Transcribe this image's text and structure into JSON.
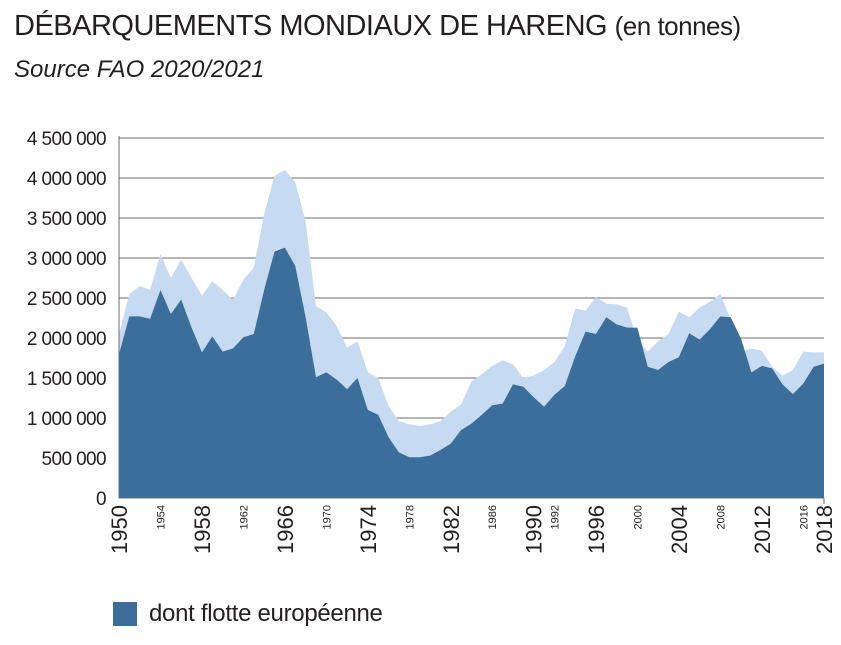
{
  "title": "DÉBARQUEMENTS MONDIAUX DE HARENG",
  "title_unit": "(en tonnes)",
  "subtitle": "Source FAO 2020/2021",
  "colors": {
    "total_area": "#c6dbf1",
    "europe_area": "#3b6e9b",
    "grid": "#6d6e71",
    "text": "#231f20"
  },
  "chart_data": {
    "type": "area",
    "title": "DÉBARQUEMENTS MONDIAUX DE HARENG (en tonnes)",
    "subtitle": "Source FAO 2020/2021",
    "xlabel": "",
    "ylabel": "",
    "ylim": [
      0,
      4500000
    ],
    "xlim": [
      1950,
      2018
    ],
    "grid": true,
    "legend_position": "bottom-left",
    "y_ticks": [
      {
        "value": 0,
        "label": "0"
      },
      {
        "value": 500000,
        "label": "500 000"
      },
      {
        "value": 1000000,
        "label": "1 000 000"
      },
      {
        "value": 1500000,
        "label": "1 500 000"
      },
      {
        "value": 2000000,
        "label": "2 000 000"
      },
      {
        "value": 2500000,
        "label": "2 500 000"
      },
      {
        "value": 3000000,
        "label": "3 000 000"
      },
      {
        "value": 3500000,
        "label": "3 500 000"
      },
      {
        "value": 4000000,
        "label": "4 000 000"
      },
      {
        "value": 4500000,
        "label": "4 500 000"
      }
    ],
    "x_ticks_major": [
      "1950",
      "1958",
      "1966",
      "1974",
      "1982",
      "1990",
      "1996",
      "2004",
      "2012",
      "2018"
    ],
    "x_ticks_minor": [
      "1954",
      "1962",
      "1970",
      "1978",
      "1986",
      "1992",
      "2000",
      "2008",
      "2016"
    ],
    "x": [
      1950,
      1951,
      1952,
      1953,
      1954,
      1955,
      1956,
      1957,
      1958,
      1959,
      1960,
      1961,
      1962,
      1963,
      1964,
      1965,
      1966,
      1967,
      1968,
      1969,
      1970,
      1971,
      1972,
      1973,
      1974,
      1975,
      1976,
      1977,
      1978,
      1979,
      1980,
      1981,
      1982,
      1983,
      1984,
      1985,
      1986,
      1987,
      1988,
      1989,
      1990,
      1991,
      1992,
      1993,
      1994,
      1995,
      1996,
      1997,
      1998,
      1999,
      2000,
      2001,
      2002,
      2003,
      2004,
      2005,
      2006,
      2007,
      2008,
      2009,
      2010,
      2011,
      2012,
      2013,
      2014,
      2015,
      2016,
      2017,
      2018
    ],
    "series": [
      {
        "name": "",
        "values": [
          2050000,
          2550000,
          2650000,
          2600000,
          3050000,
          2750000,
          2980000,
          2750000,
          2530000,
          2710000,
          2600000,
          2480000,
          2730000,
          2880000,
          3550000,
          4030000,
          4100000,
          3950000,
          3450000,
          2400000,
          2320000,
          2150000,
          1880000,
          1960000,
          1570000,
          1500000,
          1150000,
          960000,
          920000,
          900000,
          920000,
          960000,
          1080000,
          1170000,
          1460000,
          1550000,
          1650000,
          1720000,
          1670000,
          1500000,
          1530000,
          1600000,
          1700000,
          1900000,
          2370000,
          2340000,
          2510000,
          2430000,
          2420000,
          2380000,
          1980000,
          1830000,
          1960000,
          2050000,
          2330000,
          2260000,
          2380000,
          2450000,
          2550000,
          2230000,
          1820000,
          1870000,
          1840000,
          1640000,
          1530000,
          1600000,
          1830000,
          1820000,
          1820000
        ]
      },
      {
        "name": "dont flotte européenne",
        "values": [
          1800000,
          2270000,
          2270000,
          2240000,
          2600000,
          2300000,
          2480000,
          2130000,
          1820000,
          2020000,
          1830000,
          1870000,
          2010000,
          2050000,
          2600000,
          3080000,
          3130000,
          2900000,
          2260000,
          1510000,
          1570000,
          1480000,
          1360000,
          1500000,
          1100000,
          1040000,
          760000,
          570000,
          510000,
          510000,
          530000,
          600000,
          680000,
          850000,
          930000,
          1040000,
          1160000,
          1180000,
          1420000,
          1390000,
          1260000,
          1140000,
          1290000,
          1400000,
          1770000,
          2080000,
          2050000,
          2260000,
          2170000,
          2130000,
          2130000,
          1640000,
          1600000,
          1700000,
          1760000,
          2060000,
          1980000,
          2110000,
          2270000,
          2260000,
          1990000,
          1570000,
          1650000,
          1620000,
          1420000,
          1300000,
          1430000,
          1640000,
          1680000
        ]
      }
    ]
  }
}
